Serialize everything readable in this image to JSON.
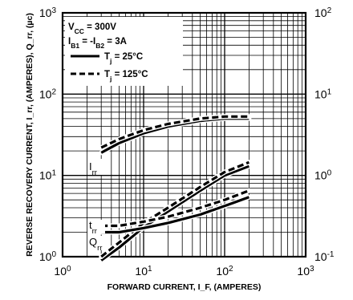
{
  "chart_data": {
    "type": "line",
    "xlabel": "FORWARD CURRENT, I_F, (AMPERES)",
    "ylabel": "REVERSE RECOVERY CURRENT, I_rr, (AMPERES), Q_rr, (µc)",
    "xscale": "log",
    "yscale": "log",
    "xlim": [
      1,
      1000
    ],
    "ylim": [
      1,
      1000
    ],
    "y2lim": [
      0.1,
      100
    ],
    "grid": true,
    "x_ticks": [
      {
        "base": "10",
        "exp": "0"
      },
      {
        "base": "10",
        "exp": "1"
      },
      {
        "base": "10",
        "exp": "2"
      },
      {
        "base": "10",
        "exp": "3"
      }
    ],
    "y_ticks": [
      {
        "base": "10",
        "exp": "0"
      },
      {
        "base": "10",
        "exp": "1"
      },
      {
        "base": "10",
        "exp": "2"
      },
      {
        "base": "10",
        "exp": "3"
      }
    ],
    "y2_ticks": [
      {
        "base": "10",
        "exp": "-1"
      },
      {
        "base": "10",
        "exp": "0"
      },
      {
        "base": "10",
        "exp": "1"
      },
      {
        "base": "10",
        "exp": "2"
      }
    ],
    "conditions": {
      "vcc_main": "V",
      "vcc_sub": "CC",
      "vcc_rest": " = 300V",
      "ib_1": "I",
      "ib_1_sub": "B1",
      "ib_mid": " = -I",
      "ib_2_sub": "B2",
      "ib_rest": " = 3A"
    },
    "legend": [
      {
        "main": "T",
        "sub": "j",
        "rest": " = 25°C",
        "style": "solid"
      },
      {
        "main": "T",
        "sub": "j",
        "rest": " = 125°C",
        "style": "dashed"
      }
    ],
    "curve_labels": {
      "irr": {
        "main": "I",
        "sub": "rr"
      },
      "trr": {
        "main": "t",
        "sub": "rr"
      },
      "qrr": {
        "main": "Q",
        "sub": "rr"
      }
    },
    "series": [
      {
        "group": "I_rr",
        "style": "solid",
        "x": [
          3,
          5,
          10,
          20,
          50,
          100,
          200
        ],
        "y": [
          19,
          25,
          33,
          40,
          47,
          50,
          50
        ]
      },
      {
        "group": "I_rr",
        "style": "dashed",
        "x": [
          3,
          5,
          10,
          20,
          50,
          100,
          200
        ],
        "y": [
          22,
          28,
          36,
          43,
          50,
          53,
          53
        ]
      },
      {
        "group": "Q_rr",
        "style": "solid",
        "x": [
          3,
          5,
          10,
          20,
          50,
          100,
          200
        ],
        "y": [
          0.9,
          1.3,
          2.3,
          3.6,
          6.5,
          10,
          13
        ]
      },
      {
        "group": "Q_rr",
        "style": "dashed",
        "x": [
          3,
          5,
          10,
          20,
          50,
          100,
          200
        ],
        "y": [
          1.0,
          1.5,
          2.6,
          4.0,
          7.2,
          11,
          14.5
        ]
      },
      {
        "group": "t_rr",
        "style": "solid",
        "x": [
          3,
          5,
          10,
          20,
          50,
          100,
          200
        ],
        "y": [
          2.0,
          2.0,
          2.25,
          2.6,
          3.3,
          4.2,
          5.4
        ]
      },
      {
        "group": "t_rr",
        "style": "dashed",
        "x": [
          3,
          5,
          10,
          20,
          50,
          100,
          200
        ],
        "y": [
          2.4,
          2.4,
          2.7,
          3.1,
          4.0,
          5.0,
          6.5
        ]
      }
    ]
  }
}
